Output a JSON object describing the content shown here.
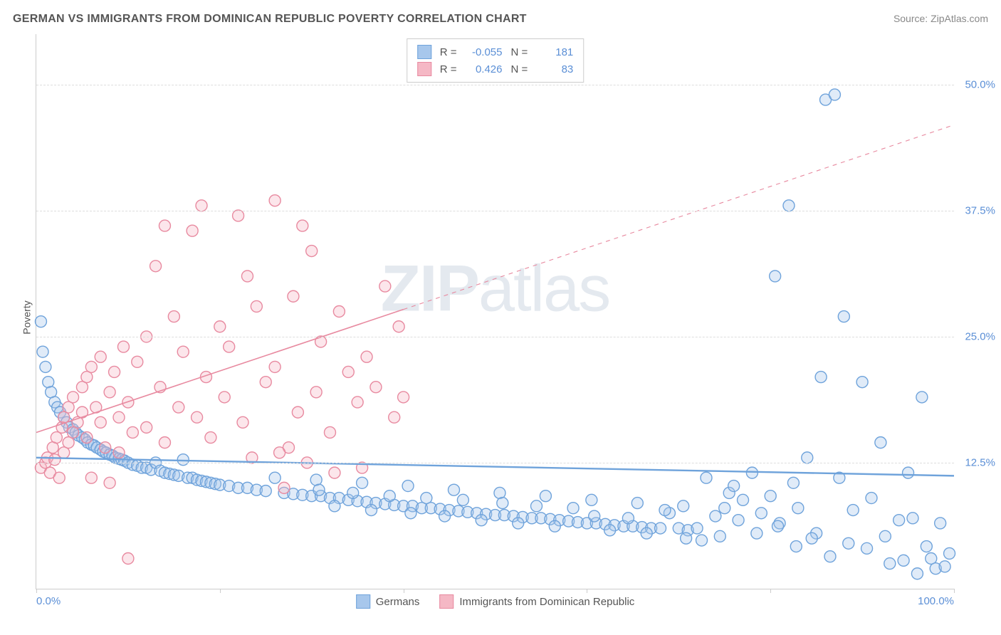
{
  "header": {
    "title": "GERMAN VS IMMIGRANTS FROM DOMINICAN REPUBLIC POVERTY CORRELATION CHART",
    "source": "Source: ZipAtlas.com"
  },
  "watermark": {
    "zip": "ZIP",
    "atlas": "atlas"
  },
  "chart": {
    "type": "scatter",
    "ylabel": "Poverty",
    "xlim": [
      0,
      100
    ],
    "ylim": [
      0,
      55
    ],
    "xtick_positions": [
      0,
      20,
      40,
      60,
      80,
      100
    ],
    "xtick_labels": [
      "0.0%",
      "",
      "",
      "",
      "",
      "100.0%"
    ],
    "ytick_positions": [
      12.5,
      25.0,
      37.5,
      50.0
    ],
    "ytick_labels": [
      "12.5%",
      "25.0%",
      "37.5%",
      "50.0%"
    ],
    "grid_color": "#dddddd",
    "axis_color": "#cccccc",
    "background_color": "#ffffff",
    "marker_radius": 8,
    "marker_fill_opacity": 0.35,
    "marker_stroke_width": 1.4,
    "series": [
      {
        "name": "Germans",
        "color_fill": "#a7c7ec",
        "color_stroke": "#6fa3db",
        "R": "-0.055",
        "N": "181",
        "trend": {
          "x1": 0,
          "y1": 13.0,
          "x2": 100,
          "y2": 11.2,
          "solid_until_x": 100,
          "stroke_width": 2.4
        },
        "points": [
          [
            0.5,
            26.5
          ],
          [
            0.7,
            23.5
          ],
          [
            1,
            22
          ],
          [
            1.3,
            20.5
          ],
          [
            1.6,
            19.5
          ],
          [
            2,
            18.5
          ],
          [
            2.3,
            18
          ],
          [
            2.6,
            17.5
          ],
          [
            3,
            17
          ],
          [
            3.3,
            16.5
          ],
          [
            3.6,
            16
          ],
          [
            4,
            15.8
          ],
          [
            4.3,
            15.5
          ],
          [
            4.6,
            15.2
          ],
          [
            5,
            15
          ],
          [
            5.3,
            14.8
          ],
          [
            5.6,
            14.5
          ],
          [
            6,
            14.3
          ],
          [
            6.3,
            14.2
          ],
          [
            6.6,
            14
          ],
          [
            7,
            13.8
          ],
          [
            7.3,
            13.6
          ],
          [
            7.6,
            13.5
          ],
          [
            8,
            13.3
          ],
          [
            8.3,
            13.2
          ],
          [
            8.6,
            13
          ],
          [
            9,
            12.9
          ],
          [
            9.3,
            12.8
          ],
          [
            9.6,
            12.7
          ],
          [
            10,
            12.5
          ],
          [
            10.5,
            12.3
          ],
          [
            11,
            12.2
          ],
          [
            11.5,
            12
          ],
          [
            12,
            12
          ],
          [
            12.5,
            11.8
          ],
          [
            13,
            12.5
          ],
          [
            13.5,
            11.7
          ],
          [
            14,
            11.5
          ],
          [
            14.5,
            11.4
          ],
          [
            15,
            11.3
          ],
          [
            15.5,
            11.2
          ],
          [
            16,
            12.8
          ],
          [
            16.5,
            11
          ],
          [
            17,
            11
          ],
          [
            17.5,
            10.8
          ],
          [
            18,
            10.7
          ],
          [
            18.5,
            10.6
          ],
          [
            19,
            10.5
          ],
          [
            19.5,
            10.4
          ],
          [
            20,
            10.3
          ],
          [
            21,
            10.2
          ],
          [
            22,
            10
          ],
          [
            23,
            10
          ],
          [
            24,
            9.8
          ],
          [
            25,
            9.7
          ],
          [
            26,
            11
          ],
          [
            27,
            9.5
          ],
          [
            28,
            9.4
          ],
          [
            29,
            9.3
          ],
          [
            30,
            9.2
          ],
          [
            30.5,
            10.8
          ],
          [
            31,
            9.2
          ],
          [
            32,
            9
          ],
          [
            33,
            9
          ],
          [
            34,
            8.8
          ],
          [
            35,
            8.7
          ],
          [
            35.5,
            10.5
          ],
          [
            36,
            8.6
          ],
          [
            37,
            8.5
          ],
          [
            38,
            8.4
          ],
          [
            39,
            8.3
          ],
          [
            40,
            8.2
          ],
          [
            40.5,
            10.2
          ],
          [
            41,
            8.2
          ],
          [
            42,
            8
          ],
          [
            43,
            8
          ],
          [
            44,
            7.9
          ],
          [
            45,
            7.8
          ],
          [
            45.5,
            9.8
          ],
          [
            46,
            7.7
          ],
          [
            47,
            7.6
          ],
          [
            48,
            7.5
          ],
          [
            49,
            7.4
          ],
          [
            50,
            7.3
          ],
          [
            50.5,
            9.5
          ],
          [
            51,
            7.3
          ],
          [
            52,
            7.2
          ],
          [
            53,
            7.1
          ],
          [
            54,
            7
          ],
          [
            55,
            7
          ],
          [
            55.5,
            9.2
          ],
          [
            56,
            6.9
          ],
          [
            57,
            6.8
          ],
          [
            58,
            6.7
          ],
          [
            59,
            6.6
          ],
          [
            60,
            6.5
          ],
          [
            60.5,
            8.8
          ],
          [
            61,
            6.5
          ],
          [
            62,
            6.4
          ],
          [
            63,
            6.3
          ],
          [
            64,
            6.2
          ],
          [
            65,
            6.2
          ],
          [
            65.5,
            8.5
          ],
          [
            66,
            6.1
          ],
          [
            67,
            6
          ],
          [
            68,
            6
          ],
          [
            69,
            7.5
          ],
          [
            70,
            6
          ],
          [
            70.5,
            8.2
          ],
          [
            71,
            5.8
          ],
          [
            72,
            6
          ],
          [
            73,
            11
          ],
          [
            74,
            7.2
          ],
          [
            75,
            8
          ],
          [
            75.5,
            9.5
          ],
          [
            76,
            10.2
          ],
          [
            77,
            8.8
          ],
          [
            78,
            11.5
          ],
          [
            79,
            7.5
          ],
          [
            80,
            9.2
          ],
          [
            80.5,
            31
          ],
          [
            81,
            6.5
          ],
          [
            82,
            38
          ],
          [
            82.5,
            10.5
          ],
          [
            83,
            8
          ],
          [
            84,
            13
          ],
          [
            85,
            5.5
          ],
          [
            85.5,
            21
          ],
          [
            86,
            48.5
          ],
          [
            87,
            49
          ],
          [
            87.5,
            11
          ],
          [
            88,
            27
          ],
          [
            89,
            7.8
          ],
          [
            90,
            20.5
          ],
          [
            90.5,
            4
          ],
          [
            91,
            9
          ],
          [
            92,
            14.5
          ],
          [
            92.5,
            5.2
          ],
          [
            93,
            2.5
          ],
          [
            94,
            6.8
          ],
          [
            94.5,
            2.8
          ],
          [
            95,
            11.5
          ],
          [
            95.5,
            7
          ],
          [
            96,
            1.5
          ],
          [
            96.5,
            19
          ],
          [
            97,
            4.2
          ],
          [
            97.5,
            3
          ],
          [
            98,
            2
          ],
          [
            98.5,
            6.5
          ],
          [
            99,
            2.2
          ],
          [
            99.5,
            3.5
          ],
          [
            88.5,
            4.5
          ],
          [
            86.5,
            3.2
          ],
          [
            84.5,
            5
          ],
          [
            82.8,
            4.2
          ],
          [
            80.8,
            6.2
          ],
          [
            78.5,
            5.5
          ],
          [
            76.5,
            6.8
          ],
          [
            74.5,
            5.2
          ],
          [
            72.5,
            4.8
          ],
          [
            70.8,
            5
          ],
          [
            68.5,
            7.8
          ],
          [
            66.5,
            5.5
          ],
          [
            64.5,
            7
          ],
          [
            62.5,
            5.8
          ],
          [
            60.8,
            7.2
          ],
          [
            58.5,
            8
          ],
          [
            56.5,
            6.2
          ],
          [
            54.5,
            8.2
          ],
          [
            52.5,
            6.5
          ],
          [
            50.8,
            8.5
          ],
          [
            48.5,
            6.8
          ],
          [
            46.5,
            8.8
          ],
          [
            44.5,
            7.2
          ],
          [
            42.5,
            9
          ],
          [
            40.8,
            7.5
          ],
          [
            38.5,
            9.2
          ],
          [
            36.5,
            7.8
          ],
          [
            34.5,
            9.5
          ],
          [
            32.5,
            8.2
          ],
          [
            30.8,
            9.8
          ]
        ]
      },
      {
        "name": "Immigrants from Dominican Republic",
        "color_fill": "#f5b8c5",
        "color_stroke": "#e88aa0",
        "R": "0.426",
        "N": "83",
        "trend": {
          "x1": 0,
          "y1": 15.5,
          "x2": 100,
          "y2": 46,
          "solid_until_x": 40,
          "stroke_width": 1.6
        },
        "points": [
          [
            0.5,
            12
          ],
          [
            1,
            12.5
          ],
          [
            1.2,
            13
          ],
          [
            1.5,
            11.5
          ],
          [
            1.8,
            14
          ],
          [
            2,
            12.8
          ],
          [
            2.2,
            15
          ],
          [
            2.5,
            11
          ],
          [
            2.8,
            16
          ],
          [
            3,
            13.5
          ],
          [
            3,
            17
          ],
          [
            3.5,
            14.5
          ],
          [
            3.5,
            18
          ],
          [
            4,
            15.5
          ],
          [
            4,
            19
          ],
          [
            4.5,
            16.5
          ],
          [
            5,
            20
          ],
          [
            5,
            17.5
          ],
          [
            5.5,
            21
          ],
          [
            5.5,
            15
          ],
          [
            6,
            22
          ],
          [
            6,
            11
          ],
          [
            6.5,
            18
          ],
          [
            7,
            16.5
          ],
          [
            7,
            23
          ],
          [
            7.5,
            14
          ],
          [
            8,
            19.5
          ],
          [
            8,
            10.5
          ],
          [
            8.5,
            21.5
          ],
          [
            9,
            17
          ],
          [
            9,
            13.5
          ],
          [
            9.5,
            24
          ],
          [
            10,
            18.5
          ],
          [
            10,
            3
          ],
          [
            10.5,
            15.5
          ],
          [
            11,
            22.5
          ],
          [
            12,
            25
          ],
          [
            12,
            16
          ],
          [
            13,
            32
          ],
          [
            13.5,
            20
          ],
          [
            14,
            36
          ],
          [
            14,
            14.5
          ],
          [
            15,
            27
          ],
          [
            15.5,
            18
          ],
          [
            16,
            23.5
          ],
          [
            17,
            35.5
          ],
          [
            17.5,
            17
          ],
          [
            18,
            38
          ],
          [
            18.5,
            21
          ],
          [
            19,
            15
          ],
          [
            20,
            26
          ],
          [
            20.5,
            19
          ],
          [
            21,
            24
          ],
          [
            22,
            37
          ],
          [
            22.5,
            16.5
          ],
          [
            23,
            31
          ],
          [
            23.5,
            13
          ],
          [
            24,
            28
          ],
          [
            25,
            20.5
          ],
          [
            26,
            22
          ],
          [
            26,
            38.5
          ],
          [
            27,
            10
          ],
          [
            27.5,
            14
          ],
          [
            28,
            29
          ],
          [
            28.5,
            17.5
          ],
          [
            29,
            36
          ],
          [
            30,
            33.5
          ],
          [
            30.5,
            19.5
          ],
          [
            31,
            24.5
          ],
          [
            32,
            15.5
          ],
          [
            33,
            27.5
          ],
          [
            34,
            21.5
          ],
          [
            35,
            18.5
          ],
          [
            36,
            23
          ],
          [
            37,
            20
          ],
          [
            38,
            30
          ],
          [
            39,
            17
          ],
          [
            39.5,
            26
          ],
          [
            40,
            19
          ],
          [
            35.5,
            12
          ],
          [
            32.5,
            11.5
          ],
          [
            29.5,
            12.5
          ],
          [
            26.5,
            13.5
          ]
        ]
      }
    ],
    "legend_bottom": [
      {
        "label": "Germans",
        "color_fill": "#a7c7ec",
        "color_stroke": "#6fa3db"
      },
      {
        "label": "Immigrants from Dominican Republic",
        "color_fill": "#f5b8c5",
        "color_stroke": "#e88aa0"
      }
    ],
    "legend_top_labels": {
      "R": "R =",
      "N": "N ="
    }
  },
  "label_fontsize": 14,
  "tick_fontsize": 15,
  "tick_color": "#5b8fd6"
}
